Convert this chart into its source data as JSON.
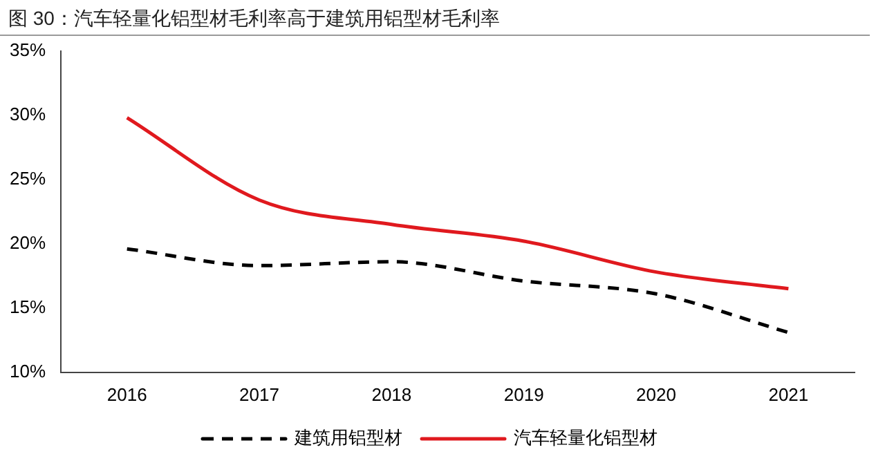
{
  "chart_data": {
    "type": "line",
    "title": "图 30：汽车轻量化铝型材毛利率高于建筑用铝型材毛利率",
    "categories": [
      "2016",
      "2017",
      "2018",
      "2019",
      "2020",
      "2021"
    ],
    "series": [
      {
        "name": "建筑用铝型材",
        "color": "#000000",
        "line_style": "dashed",
        "values": [
          19.6,
          18.3,
          18.6,
          17.1,
          16.1,
          13.1
        ]
      },
      {
        "name": "汽车轻量化铝型材",
        "color": "#e0191e",
        "line_style": "solid",
        "values": [
          29.8,
          23.4,
          21.5,
          20.2,
          17.8,
          16.5
        ]
      }
    ],
    "ylim": [
      10,
      35
    ],
    "yticks": [
      {
        "value": 10,
        "label": "10%"
      },
      {
        "value": 15,
        "label": "15%"
      },
      {
        "value": 20,
        "label": "20%"
      },
      {
        "value": 25,
        "label": "25%"
      },
      {
        "value": 30,
        "label": "30%"
      },
      {
        "value": 35,
        "label": "35%"
      }
    ],
    "grid": false,
    "legend": "bottom",
    "marker": "none"
  }
}
